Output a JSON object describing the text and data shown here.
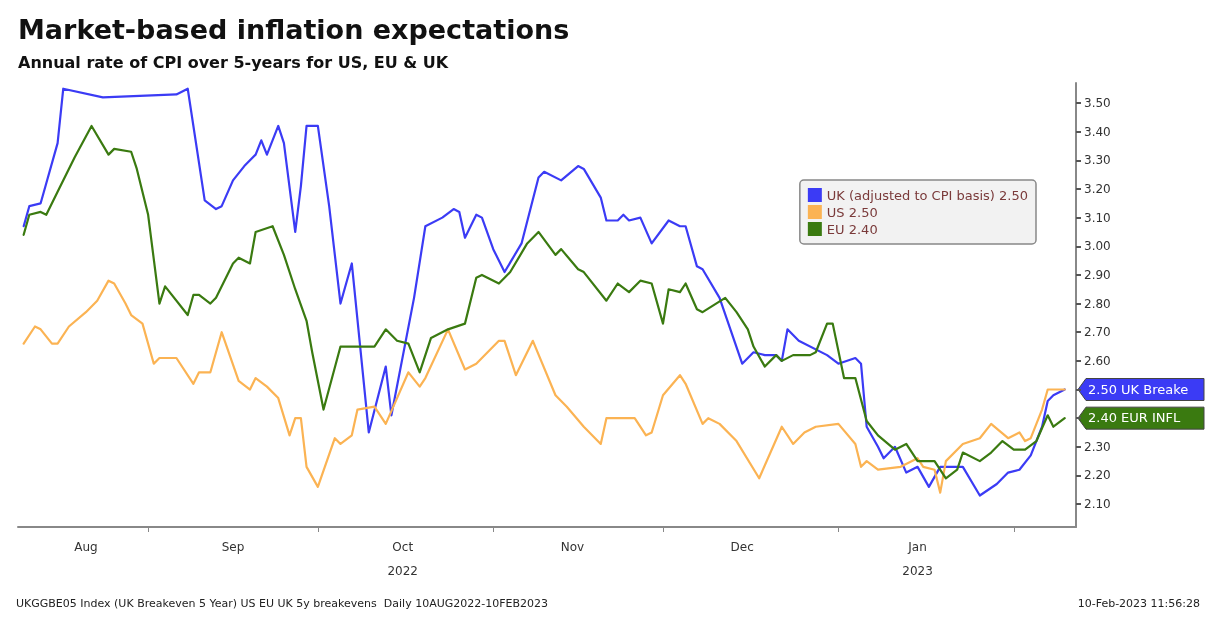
{
  "chart_data": {
    "type": "line",
    "title": "Market-based inflation expectations",
    "subtitle": "Annual rate of CPI over 5-years for US, EU & UK",
    "xlim": [
      "2022-08-09",
      "2023-02-12"
    ],
    "xticks": [
      {
        "value": "2022-08-21",
        "label": "Aug"
      },
      {
        "value": "2022-09-01",
        "label": null
      },
      {
        "value": "2022-09-16",
        "label": "Sep"
      },
      {
        "value": "2022-10-01",
        "label": null
      },
      {
        "value": "2022-10-16",
        "label": "Oct\n2022"
      },
      {
        "value": "2022-11-01",
        "label": null
      },
      {
        "value": "2022-11-15",
        "label": "Nov"
      },
      {
        "value": "2022-12-01",
        "label": null
      },
      {
        "value": "2022-12-15",
        "label": "Dec"
      },
      {
        "value": "2023-01-01",
        "label": null
      },
      {
        "value": "2023-01-15",
        "label": "Jan\n2023"
      },
      {
        "value": "2023-02-01",
        "label": null
      }
    ],
    "ylim": [
      2.02,
      3.57
    ],
    "yticks": [
      {
        "value": 2.1,
        "label": "2.10"
      },
      {
        "value": 2.2,
        "label": "2.20"
      },
      {
        "value": 2.3,
        "label": "2.30"
      },
      {
        "value": 2.4,
        "label": null
      },
      {
        "value": 2.5,
        "label": null
      },
      {
        "value": 2.6,
        "label": "2.60"
      },
      {
        "value": 2.7,
        "label": "2.70"
      },
      {
        "value": 2.8,
        "label": "2.80"
      },
      {
        "value": 2.9,
        "label": "2.90"
      },
      {
        "value": 3.0,
        "label": "3.00"
      },
      {
        "value": 3.1,
        "label": "3.10"
      },
      {
        "value": 3.2,
        "label": "3.20"
      },
      {
        "value": 3.3,
        "label": "3.30"
      },
      {
        "value": 3.4,
        "label": "3.40"
      },
      {
        "value": 3.5,
        "label": "3.50"
      }
    ],
    "grid": false,
    "legend": "top right",
    "marker": "none",
    "line_style": "solid",
    "series": [
      {
        "name": "UK (adjusted to CPI basis) 2.50",
        "color": "#3b3bf5",
        "x": [
          "2022-08-10",
          "2022-08-11",
          "2022-08-13",
          "2022-08-14",
          "2022-08-16",
          "2022-08-17",
          "2022-08-24",
          "2022-09-06",
          "2022-09-08",
          "2022-09-11",
          "2022-09-13",
          "2022-09-14",
          "2022-09-16",
          "2022-09-18",
          "2022-09-20",
          "2022-09-21",
          "2022-09-22",
          "2022-09-24",
          "2022-09-25",
          "2022-09-27",
          "2022-09-28",
          "2022-09-29",
          "2022-10-01",
          "2022-10-03",
          "2022-10-05",
          "2022-10-07",
          "2022-10-10",
          "2022-10-13",
          "2022-10-14",
          "2022-10-18",
          "2022-10-20",
          "2022-10-23",
          "2022-10-25",
          "2022-10-26",
          "2022-10-27",
          "2022-10-29",
          "2022-10-30",
          "2022-11-01",
          "2022-11-03",
          "2022-11-06",
          "2022-11-09",
          "2022-11-10",
          "2022-11-13",
          "2022-11-16",
          "2022-11-17",
          "2022-11-20",
          "2022-11-21",
          "2022-11-23",
          "2022-11-24",
          "2022-11-25",
          "2022-11-27",
          "2022-11-29",
          "2022-12-02",
          "2022-12-04",
          "2022-12-05",
          "2022-12-07",
          "2022-12-08",
          "2022-12-11",
          "2022-12-15",
          "2022-12-17",
          "2022-12-19",
          "2022-12-21",
          "2022-12-22",
          "2022-12-23",
          "2022-12-25",
          "2022-12-30",
          "2023-01-01",
          "2023-01-04",
          "2023-01-05",
          "2023-01-06",
          "2023-01-08",
          "2023-01-09",
          "2023-01-11",
          "2023-01-13",
          "2023-01-15",
          "2023-01-17",
          "2023-01-19",
          "2023-01-23",
          "2023-01-26",
          "2023-01-29",
          "2023-01-31",
          "2023-02-02",
          "2023-02-04",
          "2023-02-06",
          "2023-02-07",
          "2023-02-08",
          "2023-02-10"
        ],
        "values": [
          3.07,
          3.14,
          3.15,
          3.22,
          3.36,
          3.55,
          3.52,
          3.53,
          3.55,
          3.16,
          3.13,
          3.14,
          3.23,
          3.28,
          3.32,
          3.37,
          3.32,
          3.42,
          3.36,
          3.05,
          3.21,
          3.42,
          3.42,
          3.14,
          2.8,
          2.94,
          2.35,
          2.58,
          2.41,
          2.82,
          3.07,
          3.1,
          3.13,
          3.12,
          3.03,
          3.11,
          3.1,
          2.99,
          2.91,
          3.01,
          3.24,
          3.26,
          3.23,
          3.28,
          3.27,
          3.17,
          3.09,
          3.09,
          3.11,
          3.09,
          3.1,
          3.01,
          3.09,
          3.07,
          3.07,
          2.93,
          2.92,
          2.82,
          2.59,
          2.63,
          2.62,
          2.62,
          2.6,
          2.71,
          2.67,
          2.62,
          2.59,
          2.61,
          2.59,
          2.37,
          2.3,
          2.26,
          2.3,
          2.21,
          2.23,
          2.16,
          2.23,
          2.23,
          2.13,
          2.17,
          2.21,
          2.22,
          2.27,
          2.37,
          2.46,
          2.48,
          2.5
        ]
      },
      {
        "name": "US 2.50",
        "color": "#fbb353",
        "x": [
          "2022-08-10",
          "2022-08-12",
          "2022-08-13",
          "2022-08-15",
          "2022-08-16",
          "2022-08-18",
          "2022-08-21",
          "2022-08-23",
          "2022-08-25",
          "2022-08-26",
          "2022-08-28",
          "2022-08-29",
          "2022-08-31",
          "2022-09-02",
          "2022-09-03",
          "2022-09-06",
          "2022-09-09",
          "2022-09-10",
          "2022-09-12",
          "2022-09-14",
          "2022-09-17",
          "2022-09-19",
          "2022-09-20",
          "2022-09-22",
          "2022-09-24",
          "2022-09-26",
          "2022-09-27",
          "2022-09-28",
          "2022-09-29",
          "2022-10-01",
          "2022-10-04",
          "2022-10-05",
          "2022-10-07",
          "2022-10-08",
          "2022-10-11",
          "2022-10-13",
          "2022-10-15",
          "2022-10-17",
          "2022-10-19",
          "2022-10-20",
          "2022-10-24",
          "2022-10-27",
          "2022-10-29",
          "2022-11-02",
          "2022-11-03",
          "2022-11-05",
          "2022-11-08",
          "2022-11-12",
          "2022-11-14",
          "2022-11-17",
          "2022-11-20",
          "2022-11-21",
          "2022-11-26",
          "2022-11-28",
          "2022-11-29",
          "2022-12-01",
          "2022-12-04",
          "2022-12-05",
          "2022-12-08",
          "2022-12-09",
          "2022-12-11",
          "2022-12-14",
          "2022-12-18",
          "2022-12-22",
          "2022-12-24",
          "2022-12-26",
          "2022-12-28",
          "2023-01-01",
          "2023-01-04",
          "2023-01-05",
          "2023-01-06",
          "2023-01-08",
          "2023-01-12",
          "2023-01-15",
          "2023-01-16",
          "2023-01-18",
          "2023-01-19",
          "2023-01-20",
          "2023-01-23",
          "2023-01-26",
          "2023-01-28",
          "2023-01-31",
          "2023-02-02",
          "2023-02-03",
          "2023-02-04",
          "2023-02-06",
          "2023-02-07",
          "2023-02-10"
        ],
        "values": [
          2.66,
          2.72,
          2.71,
          2.66,
          2.66,
          2.72,
          2.77,
          2.81,
          2.88,
          2.87,
          2.8,
          2.76,
          2.73,
          2.59,
          2.61,
          2.61,
          2.52,
          2.56,
          2.56,
          2.7,
          2.53,
          2.5,
          2.54,
          2.51,
          2.47,
          2.34,
          2.4,
          2.4,
          2.23,
          2.16,
          2.33,
          2.31,
          2.34,
          2.43,
          2.44,
          2.38,
          2.47,
          2.56,
          2.51,
          2.54,
          2.71,
          2.57,
          2.59,
          2.67,
          2.67,
          2.55,
          2.67,
          2.48,
          2.44,
          2.37,
          2.31,
          2.4,
          2.4,
          2.34,
          2.35,
          2.48,
          2.55,
          2.52,
          2.38,
          2.4,
          2.38,
          2.32,
          2.19,
          2.37,
          2.31,
          2.35,
          2.37,
          2.38,
          2.31,
          2.23,
          2.25,
          2.22,
          2.23,
          2.26,
          2.23,
          2.22,
          2.14,
          2.25,
          2.31,
          2.33,
          2.38,
          2.33,
          2.35,
          2.32,
          2.33,
          2.43,
          2.5,
          2.5
        ]
      },
      {
        "name": "EU 2.40",
        "color": "#3a7a10",
        "x": [
          "2022-08-10",
          "2022-08-11",
          "2022-08-13",
          "2022-08-14",
          "2022-08-16",
          "2022-08-19",
          "2022-08-22",
          "2022-08-25",
          "2022-08-26",
          "2022-08-29",
          "2022-08-30",
          "2022-09-01",
          "2022-09-03",
          "2022-09-04",
          "2022-09-08",
          "2022-09-09",
          "2022-09-10",
          "2022-09-12",
          "2022-09-13",
          "2022-09-16",
          "2022-09-17",
          "2022-09-19",
          "2022-09-20",
          "2022-09-23",
          "2022-09-25",
          "2022-09-27",
          "2022-09-29",
          "2022-09-30",
          "2022-10-02",
          "2022-10-05",
          "2022-10-08",
          "2022-10-11",
          "2022-10-13",
          "2022-10-15",
          "2022-10-17",
          "2022-10-19",
          "2022-10-21",
          "2022-10-24",
          "2022-10-27",
          "2022-10-29",
          "2022-10-30",
          "2022-11-02",
          "2022-11-04",
          "2022-11-07",
          "2022-11-09",
          "2022-11-12",
          "2022-11-13",
          "2022-11-16",
          "2022-11-17",
          "2022-11-21",
          "2022-11-23",
          "2022-11-25",
          "2022-11-27",
          "2022-11-29",
          "2022-12-01",
          "2022-12-02",
          "2022-12-04",
          "2022-12-05",
          "2022-12-07",
          "2022-12-08",
          "2022-12-12",
          "2022-12-14",
          "2022-12-16",
          "2022-12-17",
          "2022-12-19",
          "2022-12-21",
          "2022-12-22",
          "2022-12-24",
          "2022-12-27",
          "2022-12-28",
          "2022-12-30",
          "2022-12-31",
          "2023-01-02",
          "2023-01-04",
          "2023-01-06",
          "2023-01-08",
          "2023-01-11",
          "2023-01-13",
          "2023-01-15",
          "2023-01-18",
          "2023-01-20",
          "2023-01-22",
          "2023-01-23",
          "2023-01-26",
          "2023-01-28",
          "2023-01-30",
          "2023-02-01",
          "2023-02-03",
          "2023-02-05",
          "2023-02-07",
          "2023-02-08",
          "2023-02-10"
        ],
        "values": [
          3.04,
          3.11,
          3.12,
          3.11,
          3.19,
          3.31,
          3.42,
          3.32,
          3.34,
          3.33,
          3.27,
          3.11,
          2.8,
          2.86,
          2.76,
          2.83,
          2.83,
          2.8,
          2.82,
          2.94,
          2.96,
          2.94,
          3.05,
          3.07,
          2.97,
          2.85,
          2.74,
          2.63,
          2.43,
          2.65,
          2.65,
          2.65,
          2.71,
          2.67,
          2.66,
          2.56,
          2.68,
          2.71,
          2.73,
          2.89,
          2.9,
          2.87,
          2.91,
          3.01,
          3.05,
          2.97,
          2.99,
          2.92,
          2.91,
          2.81,
          2.87,
          2.84,
          2.88,
          2.87,
          2.73,
          2.85,
          2.84,
          2.87,
          2.78,
          2.77,
          2.82,
          2.77,
          2.71,
          2.65,
          2.58,
          2.62,
          2.6,
          2.62,
          2.62,
          2.63,
          2.73,
          2.73,
          2.54,
          2.54,
          2.39,
          2.34,
          2.29,
          2.31,
          2.25,
          2.25,
          2.19,
          2.22,
          2.28,
          2.25,
          2.28,
          2.32,
          2.29,
          2.29,
          2.32,
          2.41,
          2.37,
          2.4
        ]
      }
    ],
    "annotations": [
      {
        "text": "2.50 UK Breake",
        "x": "2023-02-10",
        "y": 2.5
      },
      {
        "text": "2.40 EUR INFL",
        "x": "2023-02-10",
        "y": 2.4
      },
      "UKGGBE05 Index (UK Breakeven 5 Year) US EU UK 5y breakevens  Daily 10AUG2022-10FEB2023",
      "10-Feb-2023 11:56:28"
    ]
  }
}
